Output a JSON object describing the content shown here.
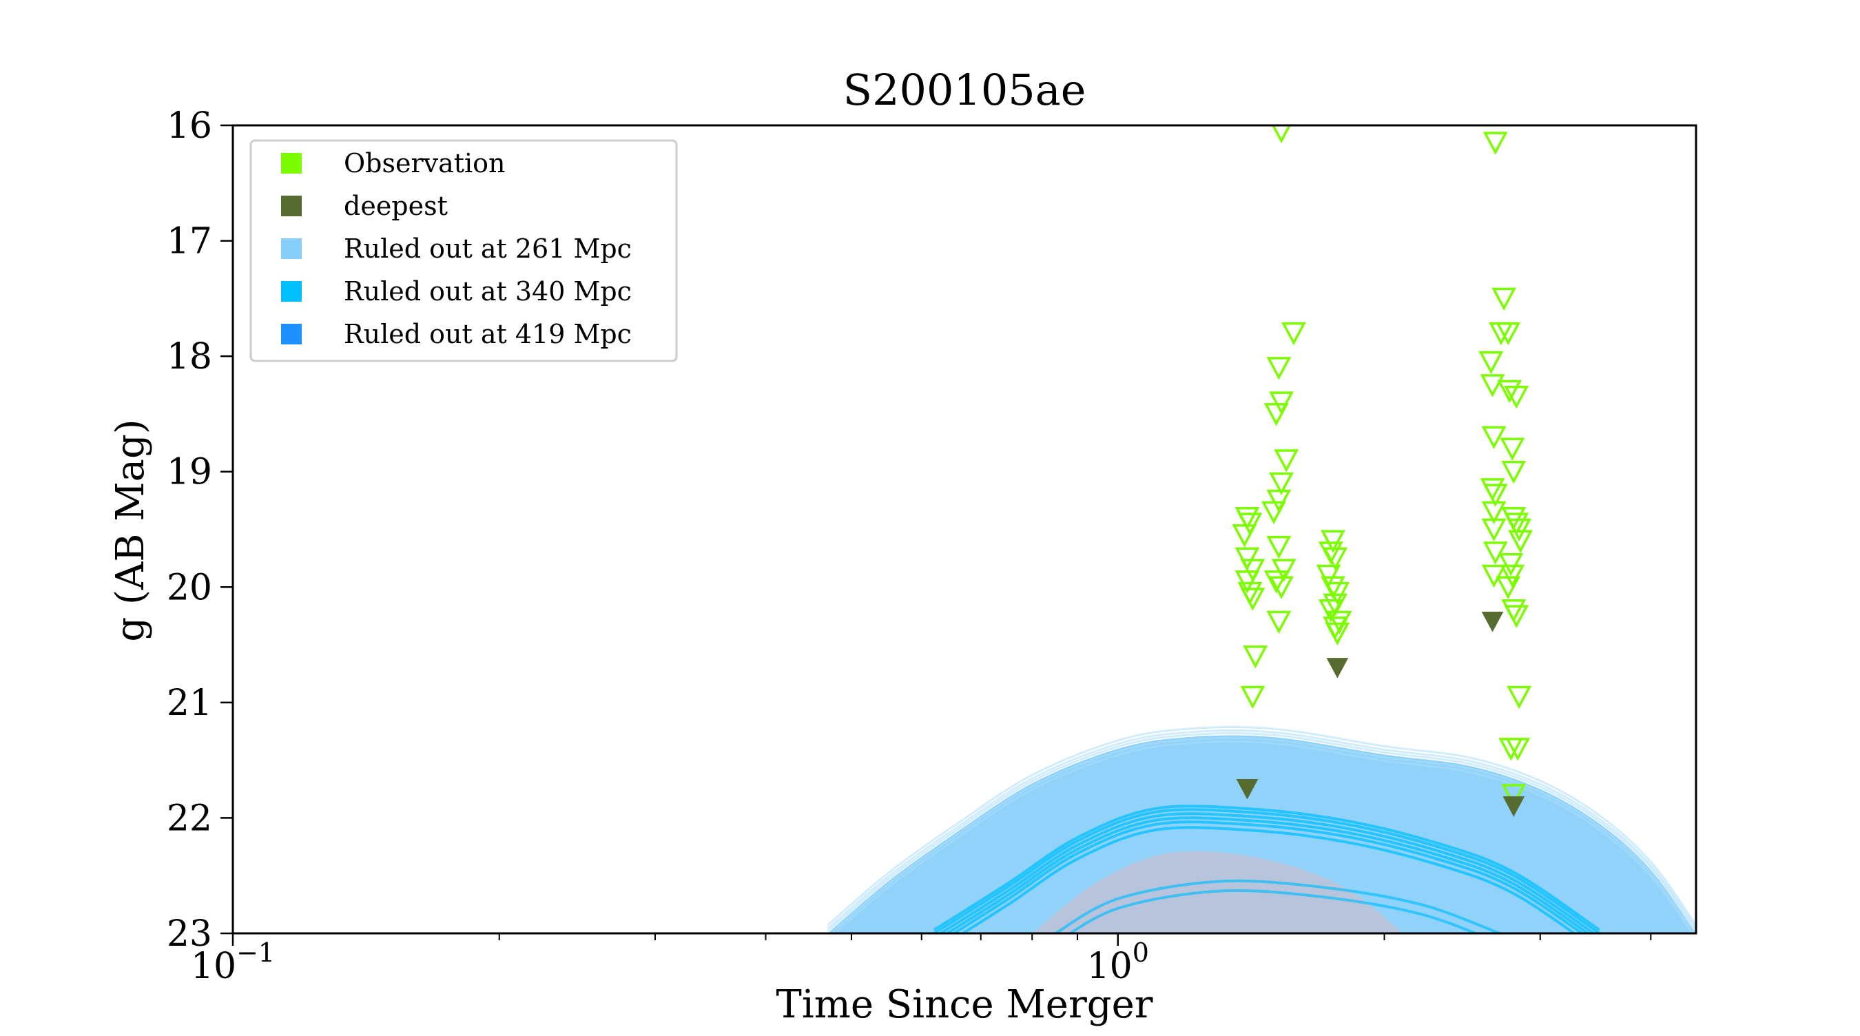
{
  "chart_data": {
    "type": "scatter",
    "title": "S200105ae",
    "xlabel": "Time Since Merger",
    "ylabel": "g (AB Mag)",
    "x_scale": "log",
    "x_range": [
      0.1,
      4.5
    ],
    "ylim": [
      23,
      16
    ],
    "y_inverted": true,
    "grid": false,
    "legend_position": "upper-left",
    "x_ticks": [
      {
        "value": 0.1,
        "base": "10",
        "exp": "−1"
      },
      {
        "value": 1,
        "base": "10",
        "exp": "0"
      }
    ],
    "y_ticks": [
      16,
      17,
      18,
      19,
      20,
      21,
      22,
      23
    ],
    "legend": [
      {
        "label": "Observation",
        "color": "#7cfc00"
      },
      {
        "label": "deepest",
        "color": "#556b2f"
      },
      {
        "label": "Ruled out at 261 Mpc",
        "color": "#87cefa"
      },
      {
        "label": "Ruled out at 340 Mpc",
        "color": "#00bfff"
      },
      {
        "label": "Ruled out at 419 Mpc",
        "color": "#1e90ff"
      }
    ],
    "colors": {
      "observation": "#7cfc00",
      "deepest": "#556b2f",
      "ruled_261": "#87cefa",
      "ruled_340": "#00bfff",
      "ruled_419": "#1e90ff"
    },
    "series": [
      {
        "name": "Observation",
        "marker": "open-triangle-down",
        "points": [
          [
            1.4,
            19.4
          ],
          [
            1.41,
            19.45
          ],
          [
            1.39,
            19.55
          ],
          [
            1.4,
            19.75
          ],
          [
            1.42,
            19.85
          ],
          [
            1.4,
            19.95
          ],
          [
            1.41,
            20.05
          ],
          [
            1.42,
            20.1
          ],
          [
            1.43,
            20.6
          ],
          [
            1.42,
            20.95
          ],
          [
            1.53,
            16.05
          ],
          [
            1.58,
            17.8
          ],
          [
            1.52,
            18.1
          ],
          [
            1.53,
            18.4
          ],
          [
            1.51,
            18.5
          ],
          [
            1.55,
            18.9
          ],
          [
            1.53,
            19.1
          ],
          [
            1.52,
            19.25
          ],
          [
            1.5,
            19.35
          ],
          [
            1.52,
            19.65
          ],
          [
            1.51,
            19.95
          ],
          [
            1.53,
            20.0
          ],
          [
            1.54,
            19.85
          ],
          [
            1.52,
            20.3
          ],
          [
            1.75,
            19.6
          ],
          [
            1.74,
            19.7
          ],
          [
            1.76,
            19.75
          ],
          [
            1.73,
            19.9
          ],
          [
            1.75,
            20.0
          ],
          [
            1.77,
            20.05
          ],
          [
            1.76,
            20.15
          ],
          [
            1.74,
            20.2
          ],
          [
            1.78,
            20.3
          ],
          [
            1.76,
            20.35
          ],
          [
            1.77,
            20.4
          ],
          [
            2.67,
            16.15
          ],
          [
            2.73,
            17.5
          ],
          [
            2.76,
            17.8
          ],
          [
            2.71,
            17.8
          ],
          [
            2.64,
            18.05
          ],
          [
            2.65,
            18.25
          ],
          [
            2.77,
            18.3
          ],
          [
            2.82,
            18.35
          ],
          [
            2.66,
            18.7
          ],
          [
            2.79,
            18.8
          ],
          [
            2.8,
            19.0
          ],
          [
            2.65,
            19.15
          ],
          [
            2.67,
            19.2
          ],
          [
            2.66,
            19.35
          ],
          [
            2.8,
            19.4
          ],
          [
            2.82,
            19.45
          ],
          [
            2.84,
            19.5
          ],
          [
            2.85,
            19.6
          ],
          [
            2.66,
            19.5
          ],
          [
            2.67,
            19.7
          ],
          [
            2.78,
            19.8
          ],
          [
            2.66,
            19.9
          ],
          [
            2.79,
            19.9
          ],
          [
            2.76,
            20.0
          ],
          [
            2.8,
            20.2
          ],
          [
            2.82,
            20.25
          ],
          [
            2.84,
            20.95
          ],
          [
            2.78,
            21.4
          ],
          [
            2.83,
            21.4
          ],
          [
            2.8,
            21.8
          ]
        ]
      },
      {
        "name": "deepest",
        "marker": "filled-triangle-down",
        "points": [
          [
            1.4,
            21.75
          ],
          [
            1.77,
            20.7
          ],
          [
            2.65,
            20.3
          ],
          [
            2.8,
            21.9
          ]
        ]
      },
      {
        "name": "Ruled out at 261 Mpc",
        "type": "area",
        "upper": [
          [
            0.47,
            23.0
          ],
          [
            0.55,
            22.55
          ],
          [
            0.65,
            22.15
          ],
          [
            0.8,
            21.7
          ],
          [
            1.0,
            21.4
          ],
          [
            1.2,
            21.3
          ],
          [
            1.5,
            21.3
          ],
          [
            2.0,
            21.45
          ],
          [
            2.5,
            21.55
          ],
          [
            3.0,
            21.75
          ],
          [
            3.5,
            22.05
          ],
          [
            4.0,
            22.45
          ],
          [
            4.5,
            23.0
          ]
        ],
        "lower_mag": 23
      },
      {
        "name": "Ruled out at 340 Mpc",
        "type": "lines",
        "upper": [
          [
            0.62,
            23.0
          ],
          [
            0.75,
            22.6
          ],
          [
            0.9,
            22.2
          ],
          [
            1.1,
            21.95
          ],
          [
            1.4,
            21.95
          ],
          [
            1.8,
            22.05
          ],
          [
            2.3,
            22.25
          ],
          [
            2.8,
            22.5
          ],
          [
            3.5,
            23.0
          ]
        ],
        "lower_upper": [
          [
            0.85,
            23.0
          ],
          [
            1.0,
            22.7
          ],
          [
            1.3,
            22.55
          ],
          [
            1.7,
            22.6
          ],
          [
            2.2,
            22.75
          ],
          [
            2.7,
            23.0
          ]
        ]
      },
      {
        "name": "Ruled out at 419 Mpc",
        "type": "area",
        "upper": [
          [
            0.8,
            23.0
          ],
          [
            0.95,
            22.55
          ],
          [
            1.15,
            22.3
          ],
          [
            1.45,
            22.35
          ],
          [
            1.8,
            22.6
          ],
          [
            2.1,
            23.0
          ]
        ],
        "lower_mag": 23
      }
    ]
  }
}
